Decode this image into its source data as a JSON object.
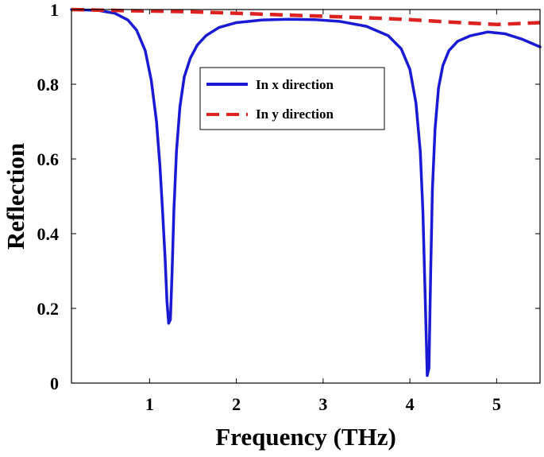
{
  "chart_data": {
    "type": "line",
    "xlabel": "Frequency (THz)",
    "ylabel": "Reflection",
    "xlim": [
      0.1,
      5.5
    ],
    "ylim": [
      0,
      1
    ],
    "xticks": [
      1,
      2,
      3,
      4,
      5
    ],
    "yticks": [
      0,
      0.2,
      0.4,
      0.6,
      0.8,
      1
    ],
    "xtick_labels": [
      "1",
      "2",
      "3",
      "4",
      "5"
    ],
    "ytick_labels": [
      "0",
      "0.2",
      "0.4",
      "0.6",
      "0.8",
      "1"
    ],
    "grid": false,
    "legend_position": "upper-center",
    "series": [
      {
        "name": "In x direction",
        "color": "#1a1ad4",
        "style": "solid",
        "x": [
          0.1,
          0.4,
          0.6,
          0.75,
          0.85,
          0.95,
          1.02,
          1.08,
          1.12,
          1.15,
          1.18,
          1.2,
          1.22,
          1.24,
          1.26,
          1.28,
          1.31,
          1.35,
          1.4,
          1.47,
          1.55,
          1.65,
          1.8,
          2.0,
          2.3,
          2.6,
          2.9,
          3.2,
          3.5,
          3.75,
          3.9,
          4.0,
          4.07,
          4.12,
          4.15,
          4.18,
          4.2,
          4.22,
          4.24,
          4.26,
          4.29,
          4.33,
          4.38,
          4.45,
          4.55,
          4.7,
          4.9,
          5.1,
          5.3,
          5.5
        ],
        "y": [
          1.0,
          0.998,
          0.99,
          0.972,
          0.945,
          0.89,
          0.81,
          0.7,
          0.58,
          0.46,
          0.33,
          0.22,
          0.16,
          0.17,
          0.3,
          0.46,
          0.62,
          0.74,
          0.82,
          0.87,
          0.905,
          0.93,
          0.952,
          0.965,
          0.972,
          0.974,
          0.973,
          0.968,
          0.955,
          0.93,
          0.895,
          0.84,
          0.75,
          0.62,
          0.46,
          0.2,
          0.02,
          0.04,
          0.3,
          0.52,
          0.68,
          0.79,
          0.85,
          0.89,
          0.915,
          0.93,
          0.94,
          0.935,
          0.92,
          0.9
        ]
      },
      {
        "name": "In y direction",
        "color": "#dd2222",
        "style": "dashed",
        "x": [
          0.1,
          0.5,
          1.0,
          1.5,
          2.0,
          2.5,
          3.0,
          3.5,
          4.0,
          4.5,
          5.0,
          5.5
        ],
        "y": [
          1.0,
          0.998,
          0.996,
          0.994,
          0.99,
          0.986,
          0.982,
          0.978,
          0.973,
          0.966,
          0.96,
          0.965
        ]
      }
    ]
  }
}
